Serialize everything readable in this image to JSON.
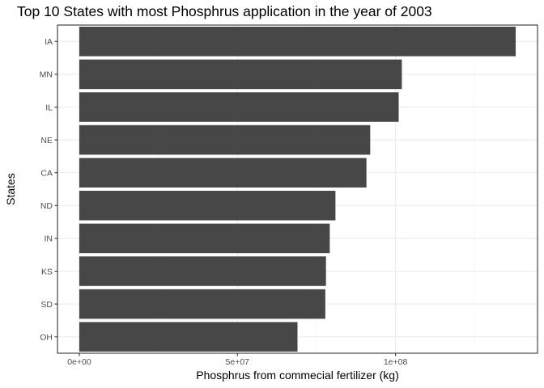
{
  "chart_data": {
    "type": "bar",
    "orientation": "horizontal",
    "title": "Top 10 States with most Phosphrus application in the year of 2003",
    "xlabel": "Phosphrus from commecial fertilizer (kg)",
    "ylabel": "States",
    "categories": [
      "IA",
      "MN",
      "IL",
      "NE",
      "CA",
      "ND",
      "IN",
      "KS",
      "SD",
      "OH"
    ],
    "values": [
      138000000,
      102000000,
      101000000,
      92000000,
      90800000,
      81000000,
      79200000,
      78000000,
      77800000,
      69000000
    ],
    "xlim": [
      -6900000,
      144900000
    ],
    "xticks": [
      0,
      50000000,
      100000000
    ],
    "xtick_labels": [
      "0e+00",
      "5e+07",
      "1e+08"
    ],
    "grid": true,
    "theme": "bw",
    "colors": {
      "bar": "#474747",
      "panel_border": "#333333",
      "grid_major": "#ebebeb",
      "grid_minor": "#f5f5f5",
      "tick_text": "#4d4d4d"
    }
  }
}
